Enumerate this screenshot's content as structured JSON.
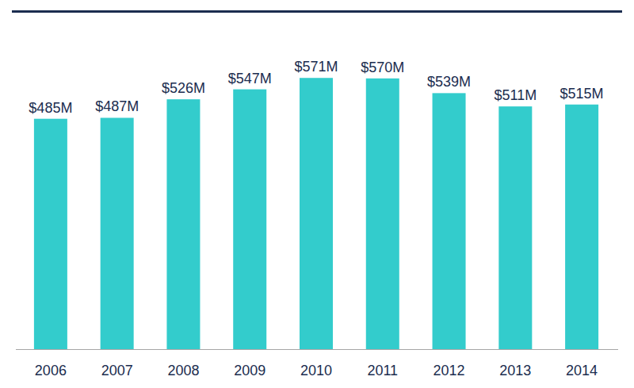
{
  "chart_data": {
    "type": "bar",
    "categories": [
      "2006",
      "2007",
      "2008",
      "2009",
      "2010",
      "2011",
      "2012",
      "2013",
      "2014"
    ],
    "values": [
      485,
      487,
      526,
      547,
      571,
      570,
      539,
      511,
      515
    ],
    "value_labels": [
      "$485M",
      "$487M",
      "$526M",
      "$547M",
      "$571M",
      "$570M",
      "$539M",
      "$511M",
      "$515M"
    ],
    "color": "#33cccc",
    "ylim": [
      0,
      700
    ],
    "grid": false,
    "data_labels": true,
    "tick_labels": "x"
  }
}
